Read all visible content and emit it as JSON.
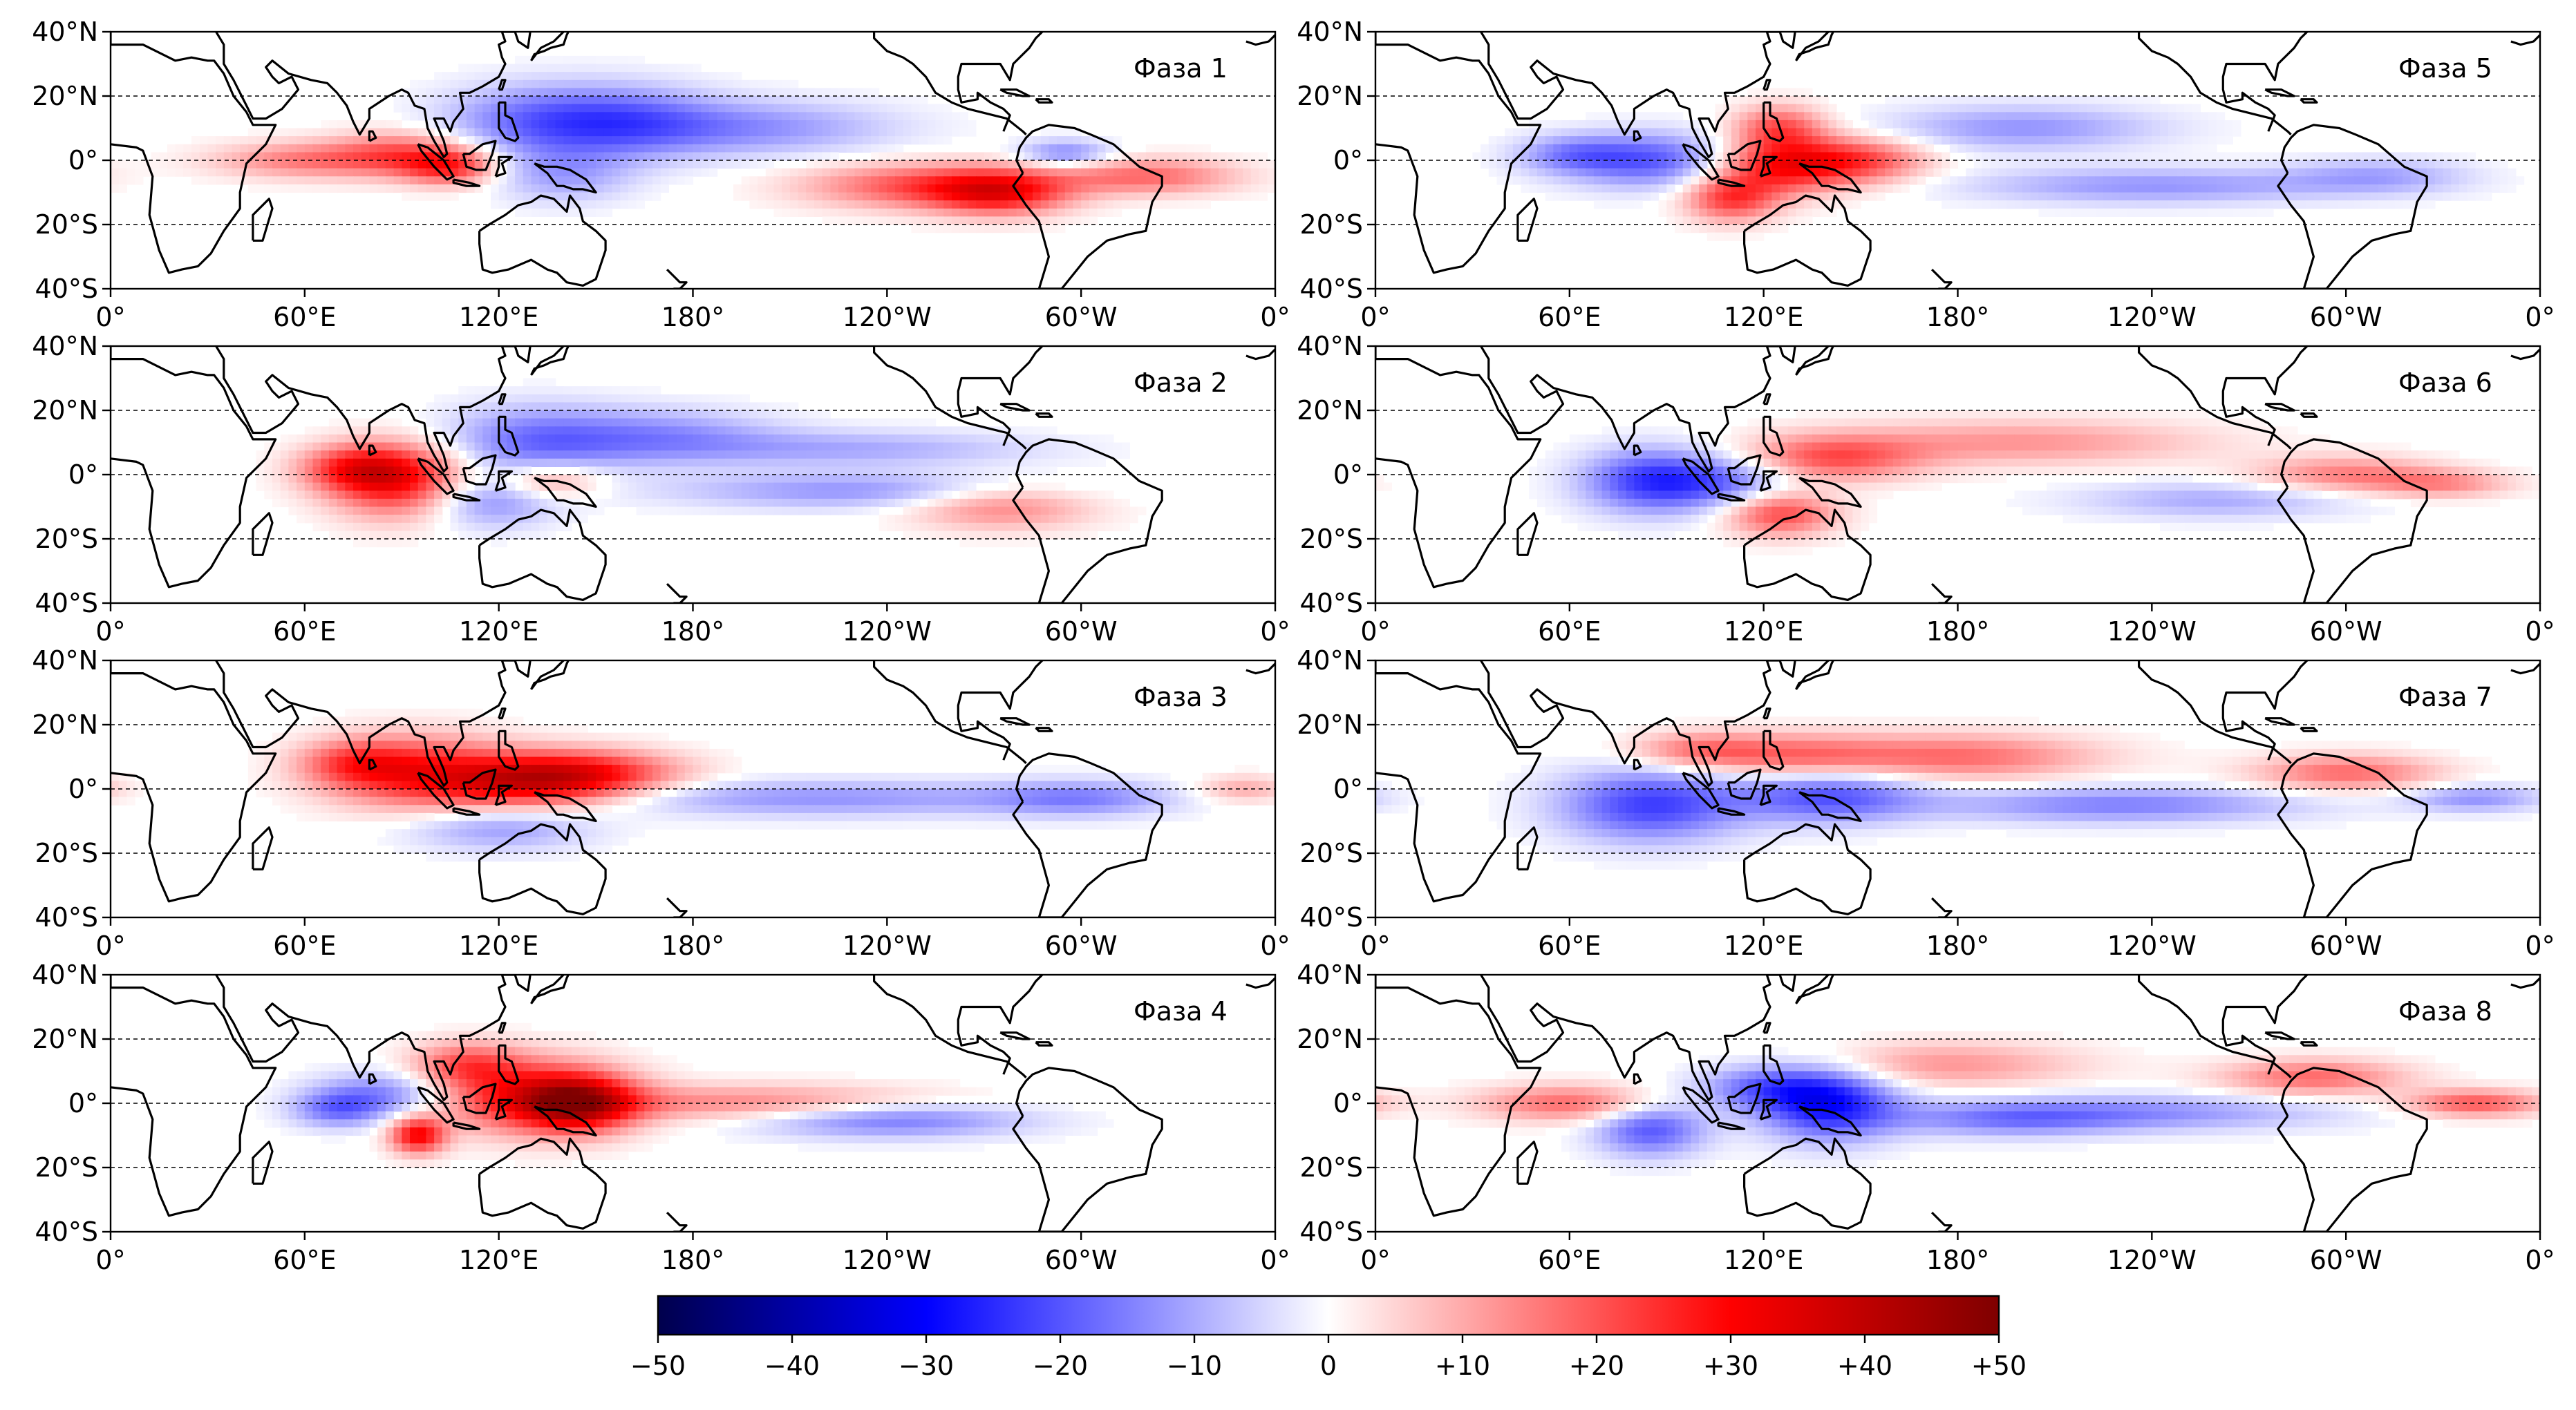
{
  "figure": {
    "lat_labels": [
      "40°N",
      "20°N",
      "0°",
      "20°S",
      "40°S"
    ],
    "lon_labels": [
      "0°",
      "60°E",
      "120°E",
      "180°",
      "120°W",
      "60°W",
      "0°"
    ],
    "panels": [
      {
        "label": "Фаза 1"
      },
      {
        "label": "Фаза 2"
      },
      {
        "label": "Фаза 3"
      },
      {
        "label": "Фаза 4"
      },
      {
        "label": "Фаза 5"
      },
      {
        "label": "Фаза 6"
      },
      {
        "label": "Фаза 7"
      },
      {
        "label": "Фаза 8"
      }
    ],
    "colorbar": {
      "colormap": "seismic",
      "ticks": [
        "−50",
        "−40",
        "−30",
        "−20",
        "−10",
        "0",
        "+10",
        "+20",
        "+30",
        "+40",
        "+50"
      ],
      "range": [
        -50,
        50
      ]
    },
    "colors": {
      "strong_negative": "#00004c",
      "negative": "#0000ff",
      "zero": "#ffffff",
      "positive": "#ff0000",
      "strong_positive": "#7f0000",
      "coastline": "#000000"
    }
  }
}
